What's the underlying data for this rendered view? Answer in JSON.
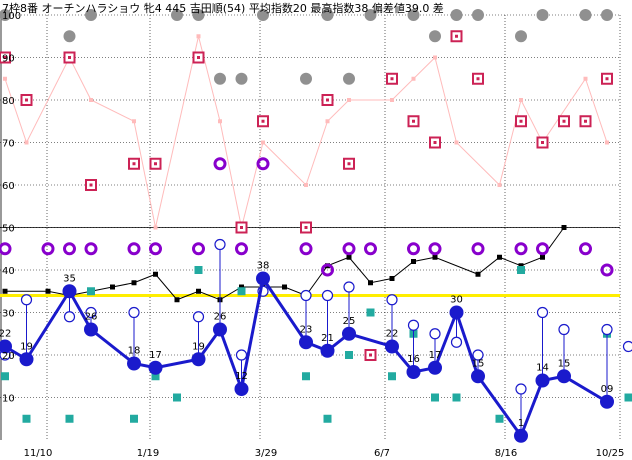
{
  "chart_data": {
    "type": "line",
    "title": "7枠8番 オーチンハラショウ 牝4 445 吉田順(54) 平均指数20 最高指数38 偏差値39.0 差",
    "ylim": [
      0,
      100
    ],
    "yticks": [
      10,
      20,
      30,
      40,
      50,
      60,
      70,
      80,
      90,
      100
    ],
    "xtick_labels": [
      {
        "index": 1,
        "label": "11/10"
      },
      {
        "index": 6,
        "label": "1/19"
      },
      {
        "index": 11,
        "label": "3/29"
      },
      {
        "index": 16,
        "label": "6/7"
      },
      {
        "index": 21,
        "label": "8/16"
      },
      {
        "index": 26,
        "label": "10/25"
      }
    ],
    "num_slots": 27,
    "reference_line": 34,
    "series": [
      {
        "role": "main",
        "color": "#1a1acc",
        "values": [
          22,
          19,
          null,
          35,
          26,
          null,
          18,
          17,
          null,
          19,
          26,
          12,
          38,
          null,
          23,
          21,
          25,
          null,
          22,
          16,
          17,
          30,
          15,
          null,
          1,
          14,
          15,
          null,
          9
        ],
        "labels": [
          "22",
          "19",
          null,
          "35",
          "26",
          null,
          "18",
          "17",
          null,
          "19",
          "26",
          "12",
          "38",
          null,
          "23",
          "21",
          "25",
          null,
          "22",
          "16",
          "17",
          "30",
          "15",
          null,
          "1",
          "14",
          "15",
          null,
          "09"
        ]
      }
    ],
    "blue_circles": [
      [
        0,
        20
      ],
      [
        1,
        33
      ],
      [
        3,
        29
      ],
      [
        4,
        30
      ],
      [
        6,
        30
      ],
      [
        7,
        17
      ],
      [
        9,
        29
      ],
      [
        10,
        46
      ],
      [
        11,
        20
      ],
      [
        12,
        35
      ],
      [
        14,
        34
      ],
      [
        15,
        34
      ],
      [
        16,
        36
      ],
      [
        18,
        33
      ],
      [
        19,
        27
      ],
      [
        20,
        25
      ],
      [
        21,
        23
      ],
      [
        22,
        20
      ],
      [
        24,
        12
      ],
      [
        25,
        30
      ],
      [
        26,
        26
      ],
      [
        28,
        26
      ],
      [
        29,
        22
      ]
    ],
    "black_line": [
      [
        0,
        35
      ],
      [
        2,
        35
      ],
      [
        3,
        34
      ],
      [
        5,
        36
      ],
      [
        6,
        37
      ],
      [
        7,
        39
      ],
      [
        8,
        33
      ],
      [
        9,
        35
      ],
      [
        10,
        33
      ],
      [
        11,
        36
      ],
      [
        12,
        36
      ],
      [
        13,
        36
      ],
      [
        14,
        34
      ],
      [
        15,
        41
      ],
      [
        16,
        43
      ],
      [
        17,
        37
      ],
      [
        18,
        38
      ],
      [
        19,
        42
      ],
      [
        20,
        43
      ],
      [
        22,
        39
      ],
      [
        23,
        43
      ],
      [
        24,
        41
      ],
      [
        25,
        43
      ],
      [
        26,
        50
      ]
    ],
    "pink_line": [
      [
        0,
        85
      ],
      [
        1,
        70
      ],
      [
        3,
        90
      ],
      [
        4,
        80
      ],
      [
        6,
        75
      ],
      [
        7,
        50
      ],
      [
        9,
        95
      ],
      [
        10,
        75
      ],
      [
        11,
        50
      ],
      [
        12,
        70
      ],
      [
        14,
        60
      ],
      [
        15,
        75
      ],
      [
        16,
        80
      ],
      [
        18,
        80
      ],
      [
        19,
        85
      ],
      [
        20,
        90
      ],
      [
        21,
        70
      ],
      [
        23,
        60
      ],
      [
        24,
        80
      ],
      [
        25,
        70
      ],
      [
        27,
        85
      ],
      [
        28,
        70
      ]
    ],
    "red_squares": [
      [
        0,
        90
      ],
      [
        1,
        80
      ],
      [
        3,
        90
      ],
      [
        4,
        60
      ],
      [
        6,
        65
      ],
      [
        7,
        65
      ],
      [
        9,
        90
      ],
      [
        11,
        50
      ],
      [
        12,
        75
      ],
      [
        14,
        50
      ],
      [
        15,
        80
      ],
      [
        16,
        65
      ],
      [
        18,
        85
      ],
      [
        19,
        75
      ],
      [
        20,
        70
      ],
      [
        21,
        95
      ],
      [
        22,
        85
      ],
      [
        24,
        75
      ],
      [
        25,
        70
      ],
      [
        26,
        75
      ],
      [
        27,
        75
      ],
      [
        28,
        85
      ],
      [
        17,
        20
      ]
    ],
    "gray_dots": [
      [
        0,
        100
      ],
      [
        3,
        95
      ],
      [
        4,
        100
      ],
      [
        8,
        100
      ],
      [
        9,
        100
      ],
      [
        10,
        85
      ],
      [
        11,
        85
      ],
      [
        12,
        100
      ],
      [
        14,
        85
      ],
      [
        15,
        100
      ],
      [
        16,
        85
      ],
      [
        17,
        100
      ],
      [
        19,
        100
      ],
      [
        20,
        95
      ],
      [
        21,
        100
      ],
      [
        22,
        100
      ],
      [
        24,
        95
      ],
      [
        25,
        100
      ],
      [
        27,
        100
      ],
      [
        28,
        100
      ]
    ],
    "purple_circles": [
      [
        0,
        45
      ],
      [
        2,
        45
      ],
      [
        3,
        45
      ],
      [
        4,
        45
      ],
      [
        6,
        45
      ],
      [
        7,
        45
      ],
      [
        9,
        45
      ],
      [
        10,
        65
      ],
      [
        11,
        45
      ],
      [
        12,
        65
      ],
      [
        14,
        45
      ],
      [
        15,
        40
      ],
      [
        16,
        45
      ],
      [
        17,
        45
      ],
      [
        19,
        45
      ],
      [
        20,
        45
      ],
      [
        22,
        45
      ],
      [
        24,
        45
      ],
      [
        25,
        45
      ],
      [
        27,
        45
      ],
      [
        28,
        40
      ]
    ],
    "teal_squares": [
      [
        0,
        15
      ],
      [
        1,
        5
      ],
      [
        3,
        5
      ],
      [
        4,
        35
      ],
      [
        6,
        5
      ],
      [
        7,
        15
      ],
      [
        8,
        10
      ],
      [
        9,
        40
      ],
      [
        11,
        35
      ],
      [
        12,
        35
      ],
      [
        14,
        15
      ],
      [
        15,
        5
      ],
      [
        16,
        20
      ],
      [
        17,
        30
      ],
      [
        18,
        15
      ],
      [
        19,
        25
      ],
      [
        20,
        10
      ],
      [
        21,
        10
      ],
      [
        23,
        5
      ],
      [
        24,
        40
      ],
      [
        26,
        15
      ],
      [
        28,
        25
      ],
      [
        29,
        10
      ]
    ],
    "colors": {
      "main": "#1a1acc",
      "black": "#000000",
      "pink": "#ffbbbb",
      "red": "#cc2255",
      "gray": "#909090",
      "purple": "#8800cc",
      "teal": "#22aaa0",
      "reference": "#ffee00",
      "grid": "#000000"
    }
  }
}
